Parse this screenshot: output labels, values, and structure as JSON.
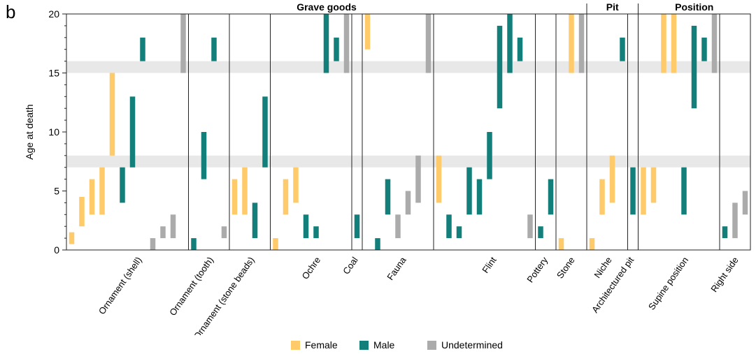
{
  "panel_label": "b",
  "colors": {
    "Female": "#FECA6A",
    "Male": "#137F7A",
    "Undetermined": "#ABABAB",
    "band": "#E8E8E8"
  },
  "legend": [
    {
      "label": "Female",
      "color": "#FECA6A"
    },
    {
      "label": "Male",
      "color": "#137F7A"
    },
    {
      "label": "Undetermined",
      "color": "#ABABAB"
    }
  ],
  "chart_data": {
    "type": "bar",
    "ylabel": "Age at death",
    "ylim": [
      0,
      20
    ],
    "yticks": [
      0,
      5,
      10,
      15,
      20
    ],
    "bar_kind": "floating range bars (min–max age per burial)",
    "shaded_bands": [
      [
        7,
        8
      ],
      [
        15,
        16
      ]
    ],
    "group_headers": [
      {
        "label": "Grave goods",
        "categories": [
          "Ornament (shell)",
          "Ornament (tooth)",
          "Ornament (stone beads)",
          "Ochre",
          "Coal",
          "Fauna",
          "Flint",
          "Pottery",
          "Stone"
        ]
      },
      {
        "label": "Pit",
        "categories": [
          "Niche",
          "Architectured pit"
        ]
      },
      {
        "label": "Position",
        "categories": [
          "Supine position",
          "Right side"
        ]
      }
    ],
    "categories": [
      {
        "label": "Ornament (shell)",
        "bars": [
          {
            "sex": "Female",
            "min": 0.5,
            "max": 1.5
          },
          {
            "sex": "Female",
            "min": 2,
            "max": 4.5
          },
          {
            "sex": "Female",
            "min": 3,
            "max": 6
          },
          {
            "sex": "Female",
            "min": 3,
            "max": 7
          },
          {
            "sex": "Female",
            "min": 8,
            "max": 15
          },
          {
            "sex": "Male",
            "min": 4,
            "max": 7
          },
          {
            "sex": "Male",
            "min": 7,
            "max": 13
          },
          {
            "sex": "Male",
            "min": 16,
            "max": 18
          },
          {
            "sex": "Undetermined",
            "min": 0,
            "max": 1
          },
          {
            "sex": "Undetermined",
            "min": 1,
            "max": 2
          },
          {
            "sex": "Undetermined",
            "min": 1,
            "max": 3
          },
          {
            "sex": "Undetermined",
            "min": 15,
            "max": 20
          }
        ]
      },
      {
        "label": "Ornament (tooth)",
        "bars": [
          {
            "sex": "Male",
            "min": 0,
            "max": 1
          },
          {
            "sex": "Male",
            "min": 6,
            "max": 10
          },
          {
            "sex": "Male",
            "min": 16,
            "max": 18
          },
          {
            "sex": "Undetermined",
            "min": 1,
            "max": 2
          }
        ]
      },
      {
        "label": "Ornament (stone beads)",
        "bars": [
          {
            "sex": "Female",
            "min": 3,
            "max": 6
          },
          {
            "sex": "Female",
            "min": 3,
            "max": 7
          },
          {
            "sex": "Male",
            "min": 1,
            "max": 4
          },
          {
            "sex": "Male",
            "min": 7,
            "max": 13
          }
        ]
      },
      {
        "label": "Ochre",
        "bars": [
          {
            "sex": "Female",
            "min": 0,
            "max": 1
          },
          {
            "sex": "Female",
            "min": 3,
            "max": 6
          },
          {
            "sex": "Female",
            "min": 4,
            "max": 7
          },
          {
            "sex": "Male",
            "min": 1,
            "max": 3
          },
          {
            "sex": "Male",
            "min": 1,
            "max": 2
          },
          {
            "sex": "Male",
            "min": 15,
            "max": 20
          },
          {
            "sex": "Male",
            "min": 16,
            "max": 18
          },
          {
            "sex": "Undetermined",
            "min": 15,
            "max": 20
          }
        ]
      },
      {
        "label": "Coal",
        "bars": [
          {
            "sex": "Male",
            "min": 1,
            "max": 3
          }
        ]
      },
      {
        "label": "Fauna",
        "bars": [
          {
            "sex": "Female",
            "min": 17,
            "max": 20
          },
          {
            "sex": "Male",
            "min": 0,
            "max": 1
          },
          {
            "sex": "Male",
            "min": 3,
            "max": 6
          },
          {
            "sex": "Undetermined",
            "min": 1,
            "max": 3
          },
          {
            "sex": "Undetermined",
            "min": 3,
            "max": 5
          },
          {
            "sex": "Undetermined",
            "min": 4,
            "max": 8
          },
          {
            "sex": "Undetermined",
            "min": 15,
            "max": 20
          }
        ]
      },
      {
        "label": "Flint",
        "bars": [
          {
            "sex": "Female",
            "min": 4,
            "max": 8
          },
          {
            "sex": "Male",
            "min": 1,
            "max": 3
          },
          {
            "sex": "Male",
            "min": 1,
            "max": 2
          },
          {
            "sex": "Male",
            "min": 3,
            "max": 7
          },
          {
            "sex": "Male",
            "min": 3,
            "max": 6
          },
          {
            "sex": "Male",
            "min": 6,
            "max": 10
          },
          {
            "sex": "Male",
            "min": 12,
            "max": 19
          },
          {
            "sex": "Male",
            "min": 15,
            "max": 20
          },
          {
            "sex": "Male",
            "min": 16,
            "max": 18
          },
          {
            "sex": "Undetermined",
            "min": 1,
            "max": 3
          }
        ]
      },
      {
        "label": "Pottery",
        "bars": [
          {
            "sex": "Male",
            "min": 1,
            "max": 2
          },
          {
            "sex": "Male",
            "min": 3,
            "max": 6
          }
        ]
      },
      {
        "label": "Stone",
        "bars": [
          {
            "sex": "Female",
            "min": 0,
            "max": 1
          },
          {
            "sex": "Female",
            "min": 15,
            "max": 20
          },
          {
            "sex": "Undetermined",
            "min": 15,
            "max": 20
          }
        ]
      },
      {
        "label": "Niche",
        "bars": [
          {
            "sex": "Female",
            "min": 0,
            "max": 1
          },
          {
            "sex": "Female",
            "min": 3,
            "max": 6
          },
          {
            "sex": "Female",
            "min": 4,
            "max": 8
          },
          {
            "sex": "Male",
            "min": 16,
            "max": 18
          }
        ]
      },
      {
        "label": "Architectured pit",
        "bars": [
          {
            "sex": "Male",
            "min": 3,
            "max": 7
          }
        ]
      },
      {
        "label": "Supine position",
        "bars": [
          {
            "sex": "Female",
            "min": 3,
            "max": 7
          },
          {
            "sex": "Female",
            "min": 4,
            "max": 7
          },
          {
            "sex": "Female",
            "min": 15,
            "max": 20
          },
          {
            "sex": "Female",
            "min": 15,
            "max": 20
          },
          {
            "sex": "Male",
            "min": 3,
            "max": 7
          },
          {
            "sex": "Male",
            "min": 12,
            "max": 19
          },
          {
            "sex": "Male",
            "min": 16,
            "max": 18
          },
          {
            "sex": "Undetermined",
            "min": 15,
            "max": 20
          }
        ]
      },
      {
        "label": "Right side",
        "bars": [
          {
            "sex": "Male",
            "min": 1,
            "max": 2
          },
          {
            "sex": "Undetermined",
            "min": 1,
            "max": 4
          },
          {
            "sex": "Undetermined",
            "min": 3,
            "max": 5
          }
        ]
      }
    ]
  }
}
